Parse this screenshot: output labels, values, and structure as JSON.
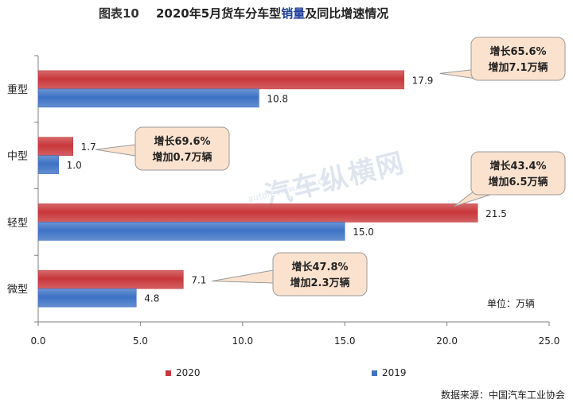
{
  "header": {
    "figure_no": "图表10",
    "title_prefix": "2020年5月货车分车型",
    "title_highlight": "销量",
    "title_suffix": "及同比增速情况"
  },
  "colors": {
    "series_2020": "#c8373a",
    "series_2019": "#3d72c4",
    "callout_bg": "#fbe2cf",
    "callout_border": "#9a9a9a"
  },
  "watermark": {
    "main": "汽车纵横网",
    "sub": "autoreview.com.cn"
  },
  "unit_label": "单位：万辆",
  "source_label": "数据来源：中国汽车工业协会",
  "chart_data": {
    "type": "bar",
    "orientation": "horizontal",
    "title": "2020年5月货车分车型销量及同比增速情况",
    "categories": [
      "重型",
      "中型",
      "轻型",
      "微型"
    ],
    "series": [
      {
        "name": "2020",
        "values": [
          17.9,
          1.7,
          21.5,
          7.1
        ]
      },
      {
        "name": "2019",
        "values": [
          10.8,
          1.0,
          15.0,
          4.8
        ]
      }
    ],
    "xlim": [
      0,
      25
    ],
    "xticks": [
      "0.0",
      "5.0",
      "10.0",
      "15.0",
      "20.0",
      "25.0"
    ],
    "legend": [
      "2020",
      "2019"
    ],
    "legend_position": "bottom",
    "grid": false,
    "annotations": [
      {
        "category": "重型",
        "line1": "增长65.6%",
        "line2": "增加7.1万辆"
      },
      {
        "category": "中型",
        "line1": "增长69.6%",
        "line2": "增加0.7万辆"
      },
      {
        "category": "轻型",
        "line1": "增长43.4%",
        "line2": "增加6.5万辆"
      },
      {
        "category": "微型",
        "line1": "增长47.8%",
        "line2": "增加2.3万辆"
      }
    ]
  }
}
